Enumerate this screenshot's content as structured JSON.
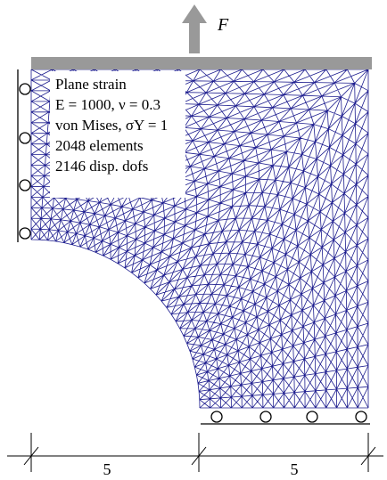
{
  "force_label": "F",
  "info_box": {
    "lines": [
      "Plane strain",
      "E = 1000, ν = 0.3",
      "von Mises, σY = 1",
      "2048 elements",
      "2146 disp. dofs"
    ]
  },
  "dimensions": [
    {
      "label": "5"
    },
    {
      "label": "5"
    }
  ]
}
